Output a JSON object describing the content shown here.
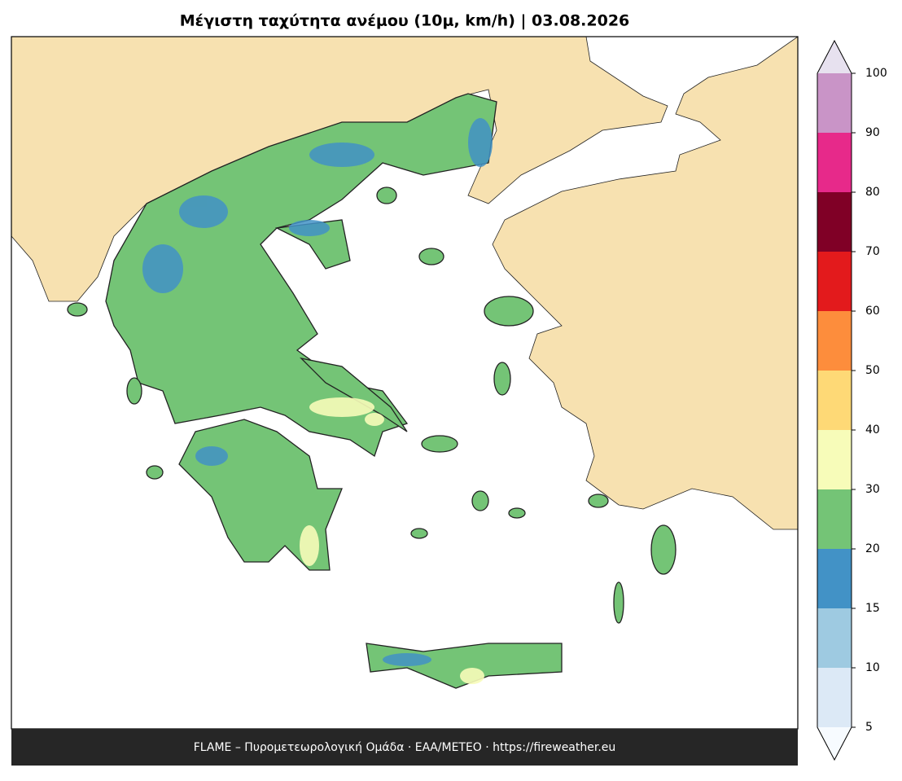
{
  "title": "Μέγιστη ταχύτητα ανέμου (10μ, km/h)  |  03.08.2026",
  "colorbar": {
    "levels": [
      5,
      10,
      15,
      20,
      30,
      40,
      50,
      60,
      70,
      80,
      90,
      100
    ],
    "colors": [
      "#dce9f6",
      "#9ecae1",
      "#4292c6",
      "#74c476",
      "#f7fcb9",
      "#fed976",
      "#fd8d3c",
      "#e31a1c",
      "#800026",
      "#e7298a",
      "#c994c7"
    ],
    "under_color": "#f7fbff",
    "over_color": "#e7e1ef"
  },
  "footer": "FLAME – Πυρομετεωρολογική Ομάδα · ΕΑΑ/METEO · https://fireweather.eu"
}
